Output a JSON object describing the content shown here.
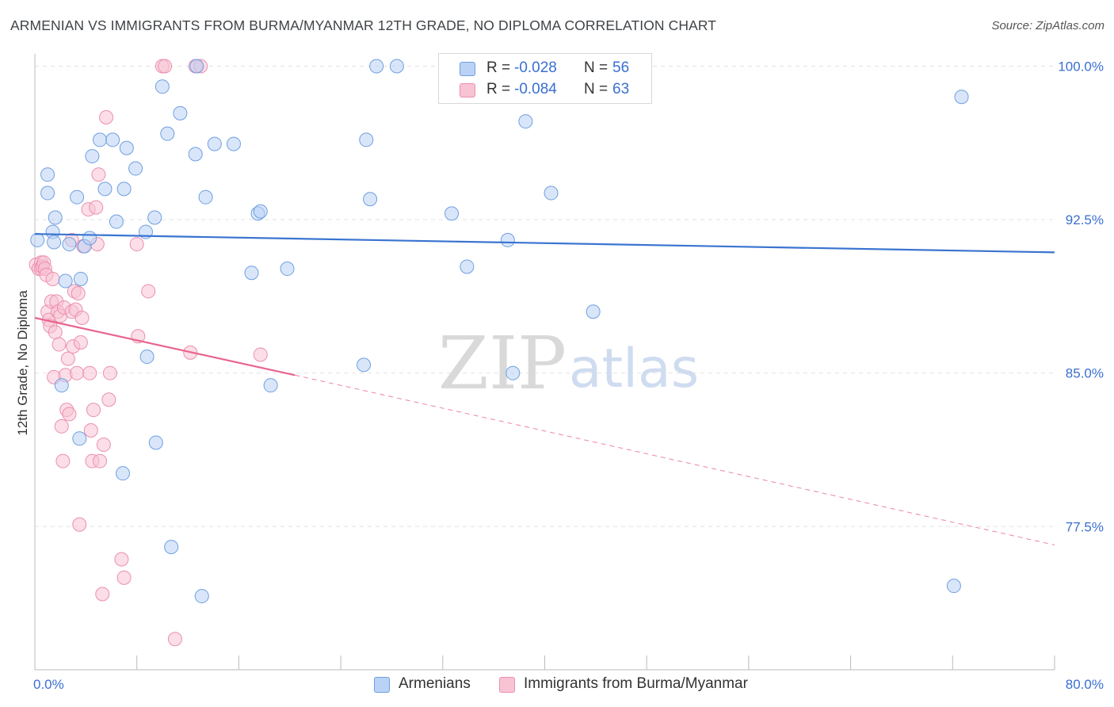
{
  "title": "ARMENIAN VS IMMIGRANTS FROM BURMA/MYANMAR 12TH GRADE, NO DIPLOMA CORRELATION CHART",
  "source": "Source: ZipAtlas.com",
  "watermark": {
    "zip": "ZIP",
    "atlas": "atlas"
  },
  "legend": {
    "r_label": "R =",
    "n_label": "N =",
    "series": [
      {
        "name": "Armenians",
        "r": "-0.028",
        "n": "56",
        "fill": "#b9d2f5",
        "stroke": "#6f9fe0"
      },
      {
        "name": "Immigrants from Burma/Myanmar",
        "r": "-0.084",
        "n": "63",
        "fill": "#f8c3d3",
        "stroke": "#ec8fae"
      }
    ]
  },
  "chart_data": {
    "type": "scatter",
    "title": "ARMENIAN VS IMMIGRANTS FROM BURMA/MYANMAR 12TH GRADE, NO DIPLOMA CORRELATION CHART",
    "xlabel": "",
    "ylabel": "12th Grade, No Diploma",
    "xlim": [
      0,
      80
    ],
    "ylim": [
      70.5,
      100.6
    ],
    "x_tick_labels": [
      "0.0%",
      "80.0%"
    ],
    "y_ticks": [
      100.0,
      92.5,
      85.0,
      77.5
    ],
    "y_tick_labels": [
      "100.0%",
      "92.5%",
      "85.0%",
      "77.5%"
    ],
    "grid": true,
    "colors": {
      "blue": "#3a74d0",
      "pink": "#e8658e",
      "tick_label": "#3a6fd1"
    },
    "series": [
      {
        "name": "Armenians",
        "points": [
          [
            0.2,
            91.5
          ],
          [
            1.0,
            93.8
          ],
          [
            1.0,
            94.7
          ],
          [
            1.4,
            91.9
          ],
          [
            1.6,
            92.6
          ],
          [
            1.5,
            91.4
          ],
          [
            2.1,
            84.4
          ],
          [
            2.4,
            89.5
          ],
          [
            2.7,
            91.3
          ],
          [
            3.3,
            93.6
          ],
          [
            3.5,
            81.8
          ],
          [
            3.6,
            89.6
          ],
          [
            3.9,
            91.2
          ],
          [
            4.3,
            91.6
          ],
          [
            4.5,
            95.6
          ],
          [
            5.1,
            96.4
          ],
          [
            5.5,
            94.0
          ],
          [
            6.1,
            96.4
          ],
          [
            6.4,
            92.4
          ],
          [
            6.9,
            80.1
          ],
          [
            7.0,
            94.0
          ],
          [
            7.2,
            96.0
          ],
          [
            7.9,
            95.0
          ],
          [
            8.7,
            91.9
          ],
          [
            8.8,
            85.8
          ],
          [
            9.4,
            92.6
          ],
          [
            9.5,
            81.6
          ],
          [
            10.0,
            99.0
          ],
          [
            10.4,
            96.7
          ],
          [
            10.7,
            76.5
          ],
          [
            11.4,
            97.7
          ],
          [
            12.6,
            95.7
          ],
          [
            12.7,
            100.0
          ],
          [
            13.1,
            74.1
          ],
          [
            13.4,
            93.6
          ],
          [
            14.1,
            96.2
          ],
          [
            15.6,
            96.2
          ],
          [
            17.0,
            89.9
          ],
          [
            17.5,
            92.8
          ],
          [
            17.7,
            92.9
          ],
          [
            18.5,
            84.4
          ],
          [
            19.8,
            90.1
          ],
          [
            25.8,
            85.4
          ],
          [
            26.0,
            96.4
          ],
          [
            26.3,
            93.5
          ],
          [
            26.8,
            100.0
          ],
          [
            28.4,
            100.0
          ],
          [
            32.7,
            92.8
          ],
          [
            33.9,
            90.2
          ],
          [
            37.1,
            91.5
          ],
          [
            37.5,
            85.0
          ],
          [
            38.5,
            97.3
          ],
          [
            40.5,
            93.8
          ],
          [
            43.8,
            88.0
          ],
          [
            72.1,
            74.6
          ],
          [
            72.7,
            98.5
          ]
        ],
        "trend": [
          [
            0,
            91.8
          ],
          [
            80,
            90.9
          ]
        ]
      },
      {
        "name": "Immigrants from Burma/Myanmar",
        "points": [
          [
            0.1,
            90.3
          ],
          [
            0.3,
            90.1
          ],
          [
            0.5,
            90.4
          ],
          [
            0.5,
            90.1
          ],
          [
            0.6,
            90.2
          ],
          [
            0.7,
            90.4
          ],
          [
            0.8,
            90.1
          ],
          [
            0.9,
            89.8
          ],
          [
            1.0,
            88.0
          ],
          [
            1.1,
            87.6
          ],
          [
            1.2,
            87.3
          ],
          [
            1.3,
            88.5
          ],
          [
            1.4,
            89.6
          ],
          [
            1.5,
            84.8
          ],
          [
            1.6,
            87.0
          ],
          [
            1.7,
            88.5
          ],
          [
            1.8,
            88.0
          ],
          [
            1.9,
            86.4
          ],
          [
            2.0,
            87.8
          ],
          [
            2.1,
            82.4
          ],
          [
            2.2,
            80.7
          ],
          [
            2.3,
            88.2
          ],
          [
            2.4,
            84.9
          ],
          [
            2.5,
            83.2
          ],
          [
            2.6,
            85.7
          ],
          [
            2.7,
            83.0
          ],
          [
            2.9,
            91.5
          ],
          [
            2.9,
            88.0
          ],
          [
            3.0,
            86.3
          ],
          [
            3.1,
            89.0
          ],
          [
            3.2,
            88.1
          ],
          [
            3.3,
            85.0
          ],
          [
            3.4,
            88.9
          ],
          [
            3.5,
            77.6
          ],
          [
            3.6,
            86.5
          ],
          [
            3.7,
            87.7
          ],
          [
            3.8,
            91.2
          ],
          [
            4.2,
            93.0
          ],
          [
            4.3,
            85.0
          ],
          [
            4.4,
            82.2
          ],
          [
            4.5,
            80.7
          ],
          [
            4.6,
            83.2
          ],
          [
            4.8,
            93.1
          ],
          [
            4.9,
            91.3
          ],
          [
            5.0,
            94.7
          ],
          [
            5.1,
            80.7
          ],
          [
            5.3,
            74.2
          ],
          [
            5.4,
            81.5
          ],
          [
            5.6,
            97.5
          ],
          [
            5.8,
            83.7
          ],
          [
            5.9,
            85.0
          ],
          [
            6.8,
            75.9
          ],
          [
            7.0,
            75.0
          ],
          [
            8.0,
            91.3
          ],
          [
            8.1,
            86.8
          ],
          [
            8.9,
            89.0
          ],
          [
            10.0,
            100.0
          ],
          [
            10.2,
            100.0
          ],
          [
            11.0,
            72.0
          ],
          [
            12.2,
            86.0
          ],
          [
            12.6,
            100.0
          ],
          [
            13.0,
            100.0
          ],
          [
            17.7,
            85.9
          ]
        ],
        "trend": [
          [
            0,
            87.7
          ],
          [
            20.4,
            84.9
          ]
        ],
        "trend_extended": [
          [
            20.4,
            84.9
          ],
          [
            80,
            76.6
          ]
        ]
      }
    ]
  }
}
